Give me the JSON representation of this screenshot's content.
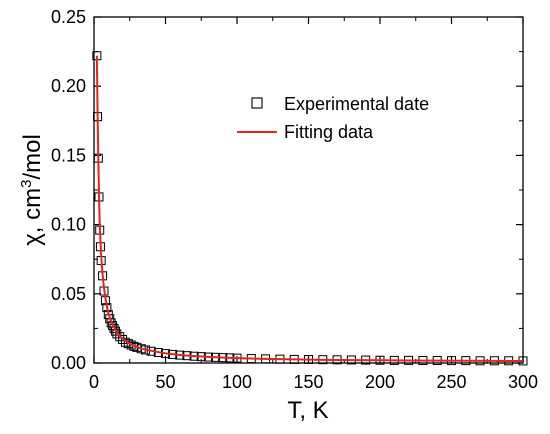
{
  "chart_data": {
    "type": "scatter",
    "xlabel": "T, K",
    "ylabel_prefix": "χ, cm",
    "ylabel_sup": "3",
    "ylabel_suffix": "/mol",
    "xlim": [
      0,
      300
    ],
    "ylim": [
      0,
      0.25
    ],
    "x_ticks": [
      0,
      50,
      100,
      150,
      200,
      250,
      300
    ],
    "x_tick_labels": [
      "0",
      "50",
      "100",
      "150",
      "200",
      "250",
      "300"
    ],
    "y_ticks": [
      0,
      0.05,
      0.1,
      0.15,
      0.2,
      0.25
    ],
    "y_tick_labels": [
      "0.00",
      "0.05",
      "0.10",
      "0.15",
      "0.20",
      "0.25"
    ],
    "grid": false,
    "legend_position": "top-right",
    "colors": {
      "experimental": "#000000",
      "fit": "#e8231a"
    },
    "series": [
      {
        "name": "Experimental date",
        "type": "scatter",
        "marker": "open-square",
        "x": [
          2,
          2.5,
          3,
          3.5,
          4,
          4.5,
          5,
          6,
          7,
          8,
          9,
          10,
          11,
          12,
          13,
          14,
          15,
          16,
          18,
          20,
          22,
          24,
          26,
          28,
          30,
          33,
          36,
          40,
          45,
          50,
          55,
          60,
          65,
          70,
          75,
          80,
          85,
          90,
          95,
          100,
          110,
          120,
          130,
          140,
          150,
          160,
          170,
          180,
          190,
          200,
          210,
          220,
          230,
          240,
          250,
          260,
          270,
          280,
          290,
          300
        ],
        "y": [
          0.222,
          0.178,
          0.148,
          0.12,
          0.096,
          0.084,
          0.074,
          0.063,
          0.052,
          0.045,
          0.04,
          0.035,
          0.032,
          0.029,
          0.027,
          0.025,
          0.023,
          0.021,
          0.019,
          0.017,
          0.015,
          0.014,
          0.013,
          0.012,
          0.0113,
          0.0103,
          0.0094,
          0.0085,
          0.0076,
          0.0068,
          0.0062,
          0.0057,
          0.0053,
          0.0049,
          0.0046,
          0.0043,
          0.0041,
          0.0039,
          0.0037,
          0.0035,
          0.0032,
          0.003,
          0.0028,
          0.0026,
          0.0025,
          0.0024,
          0.0023,
          0.0022,
          0.0021,
          0.002,
          0.0019,
          0.0019,
          0.0018,
          0.0018,
          0.0017,
          0.0017,
          0.0016,
          0.0016,
          0.0016,
          0.0015
        ]
      },
      {
        "name": "Fitting data",
        "type": "line",
        "x": [
          2,
          2.5,
          3,
          3.5,
          4,
          5,
          6,
          7,
          8,
          9,
          10,
          12,
          14,
          16,
          18,
          20,
          25,
          30,
          35,
          40,
          50,
          60,
          70,
          80,
          90,
          100,
          120,
          140,
          160,
          180,
          200,
          220,
          240,
          260,
          280,
          300
        ],
        "y": [
          0.222,
          0.18,
          0.148,
          0.122,
          0.1,
          0.078,
          0.064,
          0.054,
          0.047,
          0.041,
          0.036,
          0.03,
          0.026,
          0.022,
          0.0195,
          0.0175,
          0.014,
          0.0115,
          0.01,
          0.0088,
          0.007,
          0.0058,
          0.005,
          0.0044,
          0.0039,
          0.0035,
          0.003,
          0.0026,
          0.0023,
          0.0021,
          0.002,
          0.0018,
          0.0017,
          0.0016,
          0.0015,
          0.0014
        ]
      }
    ]
  }
}
